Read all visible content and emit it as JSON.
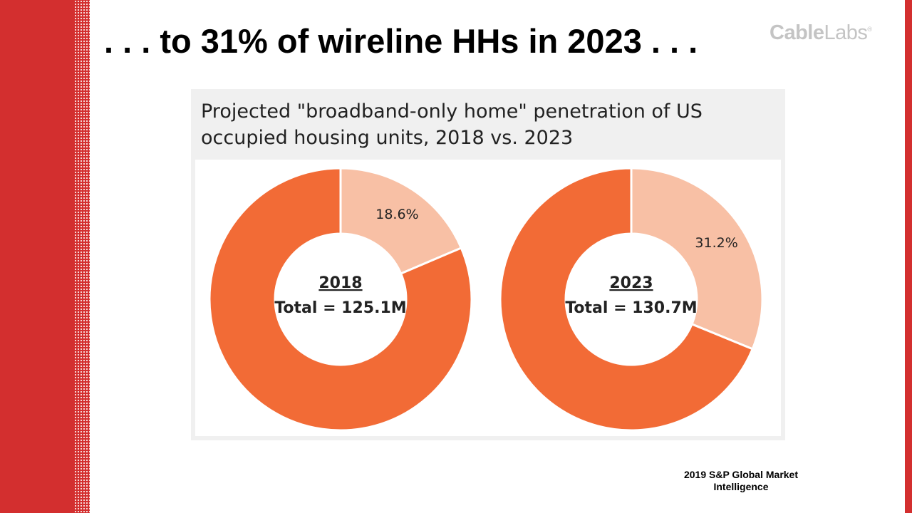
{
  "slide": {
    "title": ". . . to 31% of wireline HHs in 2023 . . .",
    "logo": {
      "bold": "Cable",
      "light": "Labs",
      "mark": "®"
    },
    "source": "2019 S&P Global Market Intelligence"
  },
  "colors": {
    "brand_red": "#d32f2f",
    "dark_orange": "#f26b36",
    "light_orange": "#f8c0a5",
    "panel_gray": "#f0f0f0"
  },
  "chart_data": {
    "type": "pie",
    "title": "Projected \"broadband-only home\" penetration of US occupied housing units,  2018 vs. 2023",
    "charts": [
      {
        "year": "2018",
        "total_label": "Total = 125.1M",
        "slices": [
          {
            "value": 18.6,
            "label": "18.6%",
            "color": "#f8c0a5"
          },
          {
            "value": 81.4,
            "color": "#f26b36"
          }
        ]
      },
      {
        "year": "2023",
        "total_label": "Total = 130.7M",
        "slices": [
          {
            "value": 31.2,
            "label": "31.2%",
            "color": "#f8c0a5"
          },
          {
            "value": 68.8,
            "color": "#f26b36"
          }
        ]
      }
    ]
  }
}
